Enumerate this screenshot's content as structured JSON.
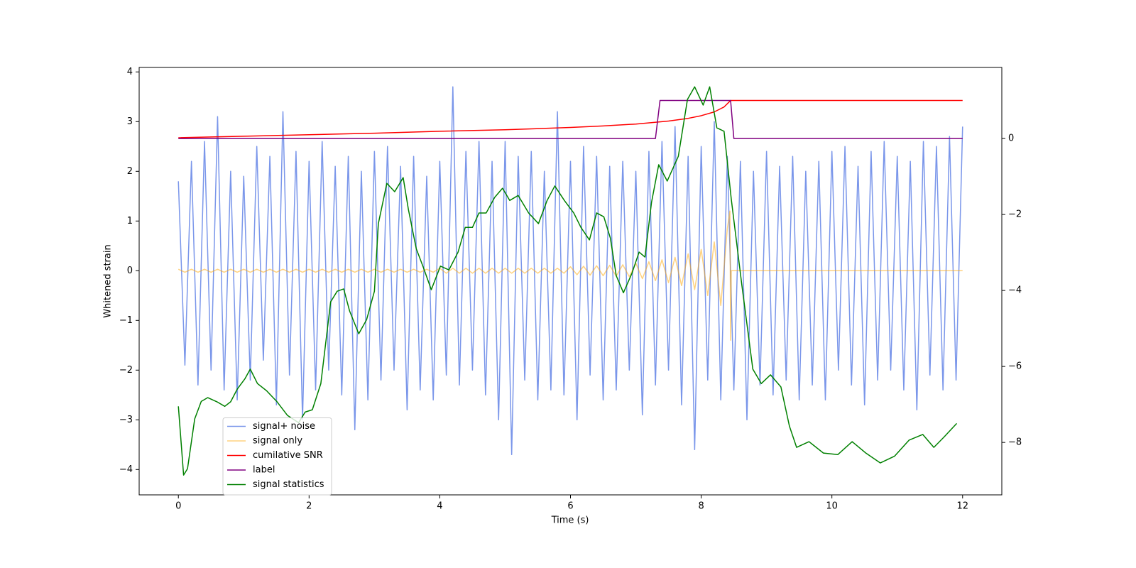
{
  "chart_data": {
    "type": "line",
    "xlabel": "Time (s)",
    "ylabel": "Whitened strain",
    "xlim": [
      -0.6,
      12.6
    ],
    "ylim": [
      -4.51,
      4.09
    ],
    "y2lim": [
      -9.38,
      1.87
    ],
    "xticks": [
      0,
      2,
      4,
      6,
      8,
      10,
      12
    ],
    "yticks": [
      {
        "value": -4,
        "label": "−4"
      },
      {
        "value": -3,
        "label": "−3"
      },
      {
        "value": -2,
        "label": "−2"
      },
      {
        "value": -1,
        "label": "−1"
      },
      0,
      1,
      2,
      3,
      4
    ],
    "y2ticks": [
      {
        "value": -8,
        "label": "−8"
      },
      {
        "value": -6,
        "label": "−6"
      },
      {
        "value": -4,
        "label": "−4"
      },
      {
        "value": -2,
        "label": "−2"
      },
      0
    ],
    "legend": "lower left",
    "series": [
      {
        "name": "signal+ noise",
        "color": "#4169e1",
        "alpha": 0.7,
        "x": [
          0,
          0.1,
          0.2,
          0.3,
          0.4,
          0.5,
          0.6,
          0.7,
          0.8,
          0.9,
          1,
          1.1,
          1.2,
          1.3,
          1.4,
          1.5,
          1.6,
          1.7,
          1.8,
          1.9,
          2,
          2.1,
          2.2,
          2.3,
          2.4,
          2.5,
          2.6,
          2.7,
          2.8,
          2.9,
          3,
          3.1,
          3.2,
          3.3,
          3.4,
          3.5,
          3.6,
          3.7,
          3.8,
          3.9,
          4,
          4.1,
          4.2,
          4.3,
          4.4,
          4.5,
          4.6,
          4.7,
          4.8,
          4.9,
          5,
          5.1,
          5.2,
          5.3,
          5.4,
          5.5,
          5.6,
          5.7,
          5.8,
          5.9,
          6,
          6.1,
          6.2,
          6.3,
          6.4,
          6.5,
          6.6,
          6.7,
          6.8,
          6.9,
          7,
          7.1,
          7.2,
          7.3,
          7.4,
          7.5,
          7.6,
          7.7,
          7.8,
          7.9,
          8,
          8.1,
          8.2,
          8.3,
          8.4,
          8.5,
          8.6,
          8.7,
          8.8,
          8.9,
          9,
          9.1,
          9.2,
          9.3,
          9.4,
          9.5,
          9.6,
          9.7,
          9.8,
          9.9,
          10,
          10.1,
          10.2,
          10.3,
          10.4,
          10.5,
          10.6,
          10.7,
          10.8,
          10.9,
          11,
          11.1,
          11.2,
          11.3,
          11.4,
          11.5,
          11.6,
          11.7,
          11.8,
          11.9,
          12
        ],
        "values": [
          1.8,
          -1.9,
          2.2,
          -2.3,
          2.6,
          -2.0,
          3.1,
          -2.4,
          2.0,
          -2.6,
          1.9,
          -2.2,
          2.5,
          -1.8,
          2.3,
          -2.7,
          3.2,
          -2.1,
          2.4,
          -3.0,
          2.2,
          -2.4,
          2.6,
          -2.0,
          2.1,
          -2.5,
          2.3,
          -3.2,
          2.0,
          -2.6,
          2.4,
          -2.2,
          2.5,
          -2.0,
          2.1,
          -2.8,
          2.3,
          -2.4,
          1.9,
          -2.6,
          2.2,
          -2.1,
          3.7,
          -2.3,
          2.4,
          -2.0,
          2.6,
          -2.5,
          2.2,
          -3.0,
          2.6,
          -3.7,
          2.3,
          -2.2,
          2.4,
          -2.6,
          2.0,
          -2.4,
          3.2,
          -2.5,
          2.2,
          -3.0,
          2.5,
          -2.1,
          2.3,
          -2.6,
          2.1,
          -2.4,
          2.2,
          -2.0,
          2.0,
          -2.9,
          2.4,
          -2.3,
          2.6,
          -2.0,
          2.9,
          -2.7,
          2.3,
          -3.6,
          2.5,
          -2.2,
          3.0,
          -2.6,
          2.3,
          -2.4,
          2.2,
          -3.0,
          2.0,
          -2.3,
          2.4,
          -2.5,
          2.1,
          -2.2,
          2.3,
          -2.6,
          2.0,
          -2.3,
          2.2,
          -2.6,
          2.4,
          -2.0,
          2.5,
          -2.3,
          2.1,
          -2.7,
          2.4,
          -2.2,
          2.6,
          -2.0,
          2.3,
          -2.4,
          2.2,
          -2.8,
          2.6,
          -2.1,
          2.5,
          -2.4,
          2.7,
          -2.2,
          2.9
        ]
      },
      {
        "name": "signal only",
        "color": "#ffa500",
        "alpha": 0.5,
        "x": [
          0,
          0.1,
          0.2,
          0.3,
          0.4,
          0.5,
          0.6,
          0.7,
          0.8,
          0.9,
          1,
          1.1,
          1.2,
          1.3,
          1.4,
          1.5,
          1.6,
          1.7,
          1.8,
          1.9,
          2,
          2.1,
          2.2,
          2.3,
          2.4,
          2.5,
          2.6,
          2.7,
          2.8,
          2.9,
          3,
          3.1,
          3.2,
          3.3,
          3.4,
          3.5,
          3.6,
          3.7,
          3.8,
          3.9,
          4,
          4.1,
          4.2,
          4.3,
          4.4,
          4.5,
          4.6,
          4.7,
          4.8,
          4.9,
          5,
          5.1,
          5.2,
          5.3,
          5.4,
          5.5,
          5.6,
          5.7,
          5.8,
          5.9,
          6,
          6.1,
          6.2,
          6.3,
          6.4,
          6.5,
          6.6,
          6.7,
          6.8,
          6.9,
          7,
          7.1,
          7.2,
          7.3,
          7.4,
          7.5,
          7.6,
          7.7,
          7.8,
          7.9,
          8,
          8.1,
          8.2,
          8.3,
          8.4,
          8.44,
          8.45,
          8.46,
          12
        ],
        "values": [
          0.03,
          -0.03,
          0.03,
          -0.03,
          0.03,
          -0.03,
          0.03,
          -0.03,
          0.03,
          -0.03,
          0.03,
          -0.03,
          0.03,
          -0.03,
          0.03,
          -0.03,
          0.03,
          -0.03,
          0.03,
          -0.03,
          0.03,
          -0.03,
          0.03,
          -0.03,
          0.03,
          -0.03,
          0.03,
          -0.03,
          0.03,
          -0.03,
          0.03,
          -0.03,
          0.03,
          -0.03,
          0.03,
          -0.03,
          0.03,
          -0.03,
          0.03,
          -0.03,
          0.05,
          -0.05,
          0.05,
          -0.05,
          0.05,
          -0.05,
          0.05,
          -0.05,
          0.05,
          -0.05,
          0.05,
          -0.05,
          0.05,
          -0.05,
          0.05,
          -0.05,
          0.05,
          -0.05,
          0.05,
          -0.05,
          0.08,
          -0.08,
          0.09,
          -0.09,
          0.1,
          -0.1,
          0.11,
          -0.11,
          0.12,
          -0.12,
          0.15,
          -0.16,
          0.18,
          -0.2,
          0.22,
          -0.24,
          0.27,
          -0.3,
          0.34,
          -0.38,
          0.43,
          -0.5,
          0.58,
          -0.7,
          0.85,
          1.2,
          -1.4,
          0,
          0
        ]
      },
      {
        "name": "cumilative SNR",
        "color": "#ff0000",
        "axis": "y2",
        "x": [
          0,
          1,
          2,
          3,
          4,
          5,
          6,
          6.5,
          7,
          7.5,
          7.8,
          8,
          8.2,
          8.35,
          8.45,
          9,
          12
        ],
        "values": [
          0.02,
          0.06,
          0.1,
          0.14,
          0.19,
          0.23,
          0.29,
          0.33,
          0.38,
          0.46,
          0.53,
          0.6,
          0.7,
          0.83,
          1.0,
          1.0,
          1.0
        ]
      },
      {
        "name": "label",
        "color": "#800080",
        "axis": "y2",
        "x": [
          0,
          7.3,
          7.37,
          8.45,
          8.5,
          12
        ],
        "values": [
          0,
          0,
          1,
          1,
          0,
          0
        ]
      },
      {
        "name": "signal statistics",
        "color": "#008000",
        "axis": "y2",
        "x": [
          0,
          0.08,
          0.14,
          0.25,
          0.35,
          0.45,
          0.59,
          0.71,
          0.8,
          0.9,
          1.02,
          1.1,
          1.21,
          1.35,
          1.51,
          1.67,
          1.84,
          1.94,
          2.05,
          2.18,
          2.33,
          2.43,
          2.53,
          2.62,
          2.76,
          2.88,
          3.0,
          3.06,
          3.19,
          3.31,
          3.44,
          3.52,
          3.64,
          3.75,
          3.87,
          4.01,
          4.14,
          4.28,
          4.39,
          4.5,
          4.6,
          4.71,
          4.84,
          4.96,
          5.07,
          5.2,
          5.36,
          5.51,
          5.64,
          5.76,
          5.91,
          6.05,
          6.16,
          6.29,
          6.4,
          6.51,
          6.61,
          6.7,
          6.81,
          6.94,
          7.05,
          7.14,
          7.24,
          7.35,
          7.48,
          7.65,
          7.79,
          7.9,
          8.03,
          8.13,
          8.24,
          8.35,
          8.46,
          8.62,
          8.79,
          8.92,
          9.06,
          9.22,
          9.35,
          9.46,
          9.65,
          9.87,
          10.09,
          10.31,
          10.52,
          10.74,
          10.96,
          11.18,
          11.39,
          11.56,
          11.72,
          11.91
        ],
        "values": [
          -7.05,
          -8.86,
          -8.69,
          -7.38,
          -6.92,
          -6.82,
          -6.93,
          -7.05,
          -6.93,
          -6.6,
          -6.32,
          -6.07,
          -6.45,
          -6.64,
          -6.93,
          -7.29,
          -7.48,
          -7.2,
          -7.14,
          -6.45,
          -4.3,
          -4.02,
          -3.96,
          -4.54,
          -5.14,
          -4.77,
          -4.02,
          -2.24,
          -1.18,
          -1.4,
          -1.03,
          -1.87,
          -2.9,
          -3.4,
          -3.98,
          -3.36,
          -3.46,
          -2.99,
          -2.34,
          -2.34,
          -1.96,
          -1.96,
          -1.55,
          -1.31,
          -1.63,
          -1.5,
          -1.96,
          -2.24,
          -1.64,
          -1.25,
          -1.64,
          -1.96,
          -2.34,
          -2.67,
          -1.96,
          -2.06,
          -2.62,
          -3.61,
          -4.06,
          -3.55,
          -2.99,
          -3.12,
          -1.68,
          -0.69,
          -1.12,
          -0.47,
          1.03,
          1.36,
          0.88,
          1.36,
          0.28,
          0.19,
          -1.59,
          -3.83,
          -6.07,
          -6.45,
          -6.22,
          -6.54,
          -7.57,
          -8.13,
          -7.98,
          -8.28,
          -8.32,
          -7.98,
          -8.28,
          -8.54,
          -8.36,
          -7.94,
          -7.79,
          -8.13,
          -7.85,
          -7.5
        ]
      }
    ]
  }
}
